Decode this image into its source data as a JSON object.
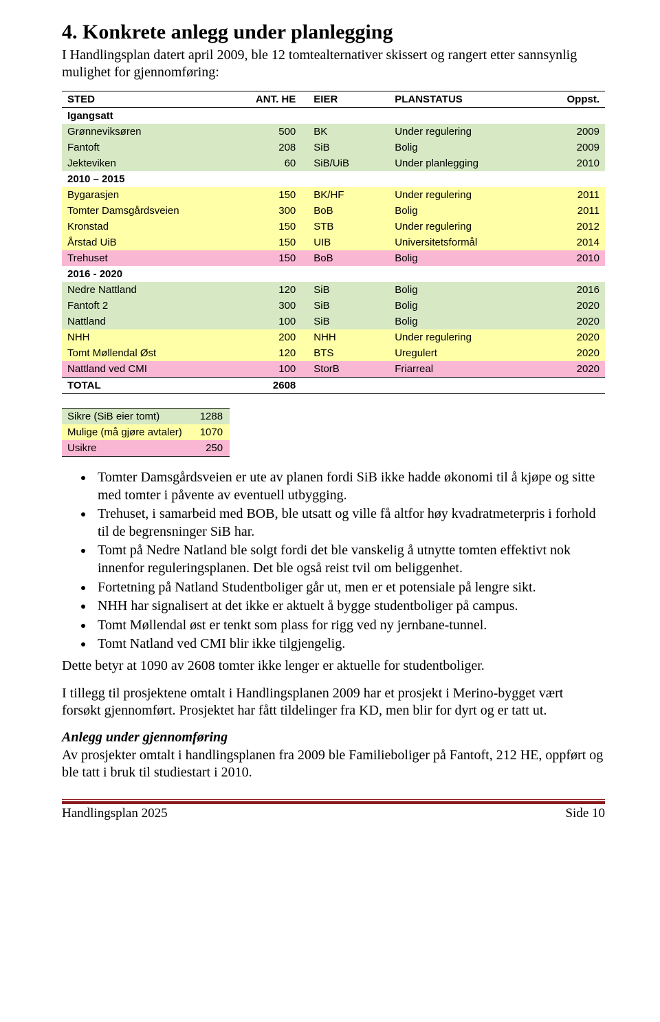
{
  "heading": "4. Konkrete anlegg under planlegging",
  "intro": "I Handlingsplan datert april 2009, ble 12 tomtealternativer skissert og rangert etter sannsynlig mulighet for gjennomføring:",
  "table": {
    "headers": {
      "sted": "STED",
      "ant": "ANT. HE",
      "eier": "EIER",
      "status": "PLANSTATUS",
      "oppst": "Oppst."
    },
    "sections": [
      {
        "label": "Igangsatt",
        "rows": [
          {
            "sted": "Grønneviksøren",
            "ant": "500",
            "eier": "BK",
            "status": "Under regulering",
            "oppst": "2009",
            "color": "bg-green"
          },
          {
            "sted": "Fantoft",
            "ant": "208",
            "eier": "SiB",
            "status": "Bolig",
            "oppst": "2009",
            "color": "bg-green"
          },
          {
            "sted": "Jekteviken",
            "ant": "60",
            "eier": "SiB/UiB",
            "status": "Under planlegging",
            "oppst": "2010",
            "color": "bg-green"
          }
        ]
      },
      {
        "label": "2010 – 2015",
        "rows": [
          {
            "sted": "Bygarasjen",
            "ant": "150",
            "eier": "BK/HF",
            "status": "Under regulering",
            "oppst": "2011",
            "color": "bg-yellow"
          },
          {
            "sted": "Tomter Damsgårdsveien",
            "ant": "300",
            "eier": "BoB",
            "status": "Bolig",
            "oppst": "2011",
            "color": "bg-yellow"
          },
          {
            "sted": "Kronstad",
            "ant": "150",
            "eier": "STB",
            "status": "Under regulering",
            "oppst": "2012",
            "color": "bg-yellow"
          },
          {
            "sted": "Årstad UiB",
            "ant": "150",
            "eier": "UIB",
            "status": "Universitetsformål",
            "oppst": "2014",
            "color": "bg-yellow"
          },
          {
            "sted": "Trehuset",
            "ant": "150",
            "eier": "BoB",
            "status": "Bolig",
            "oppst": "2010",
            "color": "bg-pink"
          }
        ]
      },
      {
        "label": "2016 - 2020",
        "rows": [
          {
            "sted": "Nedre Nattland",
            "ant": "120",
            "eier": "SiB",
            "status": "Bolig",
            "oppst": "2016",
            "color": "bg-green"
          },
          {
            "sted": "Fantoft 2",
            "ant": "300",
            "eier": "SiB",
            "status": "Bolig",
            "oppst": "2020",
            "color": "bg-green"
          },
          {
            "sted": "Nattland",
            "ant": "100",
            "eier": "SiB",
            "status": "Bolig",
            "oppst": "2020",
            "color": "bg-green"
          },
          {
            "sted": "NHH",
            "ant": "200",
            "eier": "NHH",
            "status": "Under regulering",
            "oppst": "2020",
            "color": "bg-yellow"
          },
          {
            "sted": "Tomt Møllendal Øst",
            "ant": "120",
            "eier": "BTS",
            "status": "Uregulert",
            "oppst": "2020",
            "color": "bg-yellow"
          },
          {
            "sted": "Nattland ved CMI",
            "ant": "100",
            "eier": "StorB",
            "status": "Friarreal",
            "oppst": "2020",
            "color": "bg-pink"
          }
        ]
      }
    ],
    "total": {
      "label": "TOTAL",
      "value": "2608"
    }
  },
  "legend": [
    {
      "label": "Sikre (SiB eier tomt)",
      "value": "1288",
      "color": "bg-green"
    },
    {
      "label": "Mulige (må gjøre avtaler)",
      "value": "1070",
      "color": "bg-yellow"
    },
    {
      "label": "Usikre",
      "value": "250",
      "color": "bg-pink"
    }
  ],
  "bullets": [
    "Tomter Damsgårdsveien er ute av planen fordi SiB ikke hadde økonomi til å kjøpe og sitte med tomter i påvente av eventuell utbygging.",
    "Trehuset, i samarbeid med BOB, ble utsatt og ville få altfor høy kvadratmeterpris i forhold til de begrensninger SiB har.",
    "Tomt på Nedre Natland ble solgt fordi det ble vanskelig å utnytte tomten effektivt nok innenfor reguleringsplanen. Det ble også reist tvil om beliggenhet.",
    "Fortetning på Natland Studentboliger går ut, men er et potensiale på lengre sikt.",
    "NHH har signalisert at det ikke er aktuelt å bygge studentboliger på campus.",
    "Tomt Møllendal øst er tenkt som plass for rigg ved ny jernbane-tunnel.",
    "Tomt Natland ved CMI blir ikke tilgjengelig."
  ],
  "para1": "Dette betyr at 1090 av 2608 tomter ikke lenger er aktuelle for studentboliger.",
  "para2": "I tillegg til prosjektene omtalt i Handlingsplanen 2009 har et prosjekt i Merino-bygget vært forsøkt gjennomført. Prosjektet har fått tildelinger fra KD, men blir for dyrt og er tatt ut.",
  "subhead": "Anlegg under gjennomføring",
  "para3": "Av prosjekter omtalt i handlingsplanen fra 2009 ble Familieboliger på Fantoft, 212 HE, oppført og ble tatt i bruk til studiestart i 2010.",
  "footer": {
    "left": "Handlingsplan 2025",
    "right": "Side 10"
  }
}
